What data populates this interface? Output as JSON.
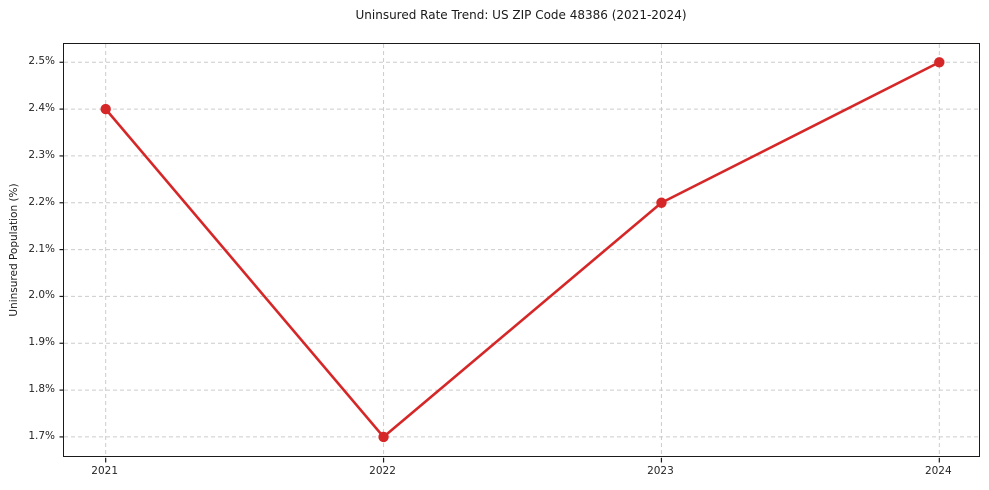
{
  "chart_data": {
    "type": "line",
    "title": "Uninsured Rate Trend: US ZIP Code 48386 (2021-2024)",
    "xlabel": "",
    "ylabel": "Uninsured Population (%)",
    "x": [
      2021,
      2022,
      2023,
      2024
    ],
    "y": [
      2.4,
      1.7,
      2.2,
      2.5
    ],
    "x_tick_labels": [
      "2021",
      "2022",
      "2023",
      "2024"
    ],
    "y_ticks": [
      1.7,
      1.8,
      1.9,
      2.0,
      2.1,
      2.2,
      2.3,
      2.4,
      2.5
    ],
    "y_tick_labels": [
      "1.7%",
      "1.8%",
      "1.9%",
      "2.0%",
      "2.1%",
      "2.2%",
      "2.3%",
      "2.4%",
      "2.5%"
    ],
    "xlim": [
      2020.85,
      2024.15
    ],
    "ylim": [
      1.655,
      2.539
    ],
    "grid": true,
    "grid_style": "dashed",
    "legend": "none",
    "series_name": "Uninsured rate",
    "line_color": "#d62728",
    "marker": "circle",
    "marker_color": "#d62728",
    "grid_color": "#cccccc",
    "spine_color": "#1a1a1a",
    "background": "#ffffff"
  }
}
